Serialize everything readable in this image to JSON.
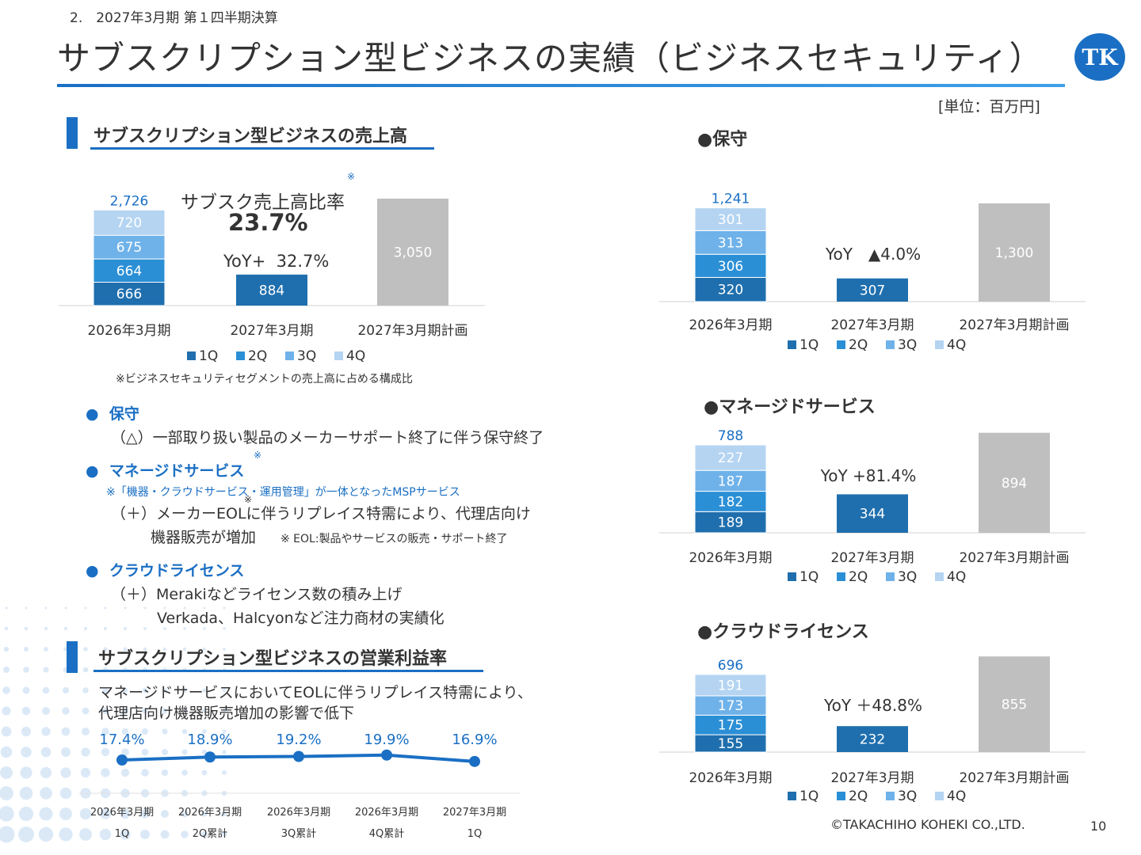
{
  "header": {
    "section_label": "2.　2027年3月期 第１四半期決算",
    "title": "サブスクリプション型ビジネスの実績（ビジネスセキュリティ）",
    "logo_text": "TK",
    "unit": "[単位：百万円]"
  },
  "left": {
    "sales_heading": "サブスクリプション型ビジネスの売上高",
    "ratio_label": "サブスク売上高比率",
    "ratio_mark": "※",
    "ratio_value": "23.7%",
    "yoy": "YoY+  32.7%",
    "ratio_note": "※ビジネスセキュリティセグメントの売上高に占める構成比",
    "bullets": [
      {
        "title": "保守",
        "mark": "",
        "lines": [
          "（△）一部取り扱い製品のメーカーサポート終了に伴う保守終了"
        ]
      },
      {
        "title": "マネージドサービス",
        "mark": "※",
        "note": "※「機器・クラウドサービス・運用管理」が一体となったMSPサービス",
        "lines": [
          "（＋）メーカーEOLに伴うリプレイス特需により、代理店向け",
          "機器販売が増加"
        ],
        "eol_mark": "※",
        "eol_note": "※ EOL:製品やサービスの販売・サポート終了"
      },
      {
        "title": "クラウドライセンス",
        "mark": "",
        "lines": [
          "（＋）Merakiなどライセンス数の積み上げ",
          "Verkada、Halcyonなど注力商材の実績化"
        ]
      }
    ],
    "margin_heading": "サブスクリプション型ビジネスの営業利益率",
    "margin_desc": [
      "マネージドサービスにおいてEOLに伴うリプレイス特需により、",
      "代理店向け機器販売増加の影響で低下"
    ]
  },
  "right": {
    "maint_heading": "●保守",
    "managed_heading": "●マネージドサービス",
    "cloud_heading": "●クラウドライセンス"
  },
  "footer": {
    "copyright": "©TAKACHIHO KOHEKI CO.,LTD.",
    "page": "10"
  },
  "colors": {
    "q1": "#1f6fae",
    "q2": "#2b8fd6",
    "q3": "#6fb2ea",
    "q4": "#b4d4f2",
    "actual": "#1f6fae",
    "plan": "#bfbfbf",
    "accent": "#1a6fc4"
  },
  "chart_data": [
    {
      "type": "bar",
      "name": "sales",
      "categories": [
        "2026年3月期",
        "2027年3月期",
        "2027年3月期計画"
      ],
      "legend": [
        "1Q",
        "2Q",
        "3Q",
        "4Q"
      ],
      "stacked": [
        666,
        664,
        675,
        720
      ],
      "stacked_total": "2,726",
      "actual": 884,
      "plan": 3050,
      "plan_label": "3,050",
      "yoy": ""
    },
    {
      "type": "bar",
      "name": "maintenance",
      "categories": [
        "2026年3月期",
        "2027年3月期",
        "2027年3月期計画"
      ],
      "legend": [
        "1Q",
        "2Q",
        "3Q",
        "4Q"
      ],
      "stacked": [
        320,
        306,
        313,
        301
      ],
      "stacked_total": "1,241",
      "actual": 307,
      "plan": 1300,
      "plan_label": "1,300",
      "yoy": "YoY　▲4.0%"
    },
    {
      "type": "bar",
      "name": "managed",
      "categories": [
        "2026年3月期",
        "2027年3月期",
        "2027年3月期計画"
      ],
      "legend": [
        "1Q",
        "2Q",
        "3Q",
        "4Q"
      ],
      "stacked": [
        189,
        182,
        187,
        227
      ],
      "stacked_total": "788",
      "actual": 344,
      "plan": 894,
      "plan_label": "894",
      "yoy": "YoY +81.4%"
    },
    {
      "type": "bar",
      "name": "cloud",
      "categories": [
        "2026年3月期",
        "2027年3月期",
        "2027年3月期計画"
      ],
      "legend": [
        "1Q",
        "2Q",
        "3Q",
        "4Q"
      ],
      "stacked": [
        155,
        175,
        173,
        191
      ],
      "stacked_total": "696",
      "actual": 232,
      "plan": 855,
      "plan_label": "855",
      "yoy": "YoY ＋48.8%"
    },
    {
      "type": "line",
      "name": "operating-margin",
      "categories": [
        [
          "2026年3月期",
          "1Q"
        ],
        [
          "2026年3月期",
          "2Q累計"
        ],
        [
          "2026年3月期",
          "3Q累計"
        ],
        [
          "2026年3月期",
          "4Q累計"
        ],
        [
          "2027年3月期",
          "1Q"
        ]
      ],
      "values": [
        17.4,
        18.9,
        19.2,
        19.9,
        16.9
      ],
      "labels": [
        "17.4%",
        "18.9%",
        "19.2%",
        "19.9%",
        "16.9%"
      ]
    }
  ]
}
